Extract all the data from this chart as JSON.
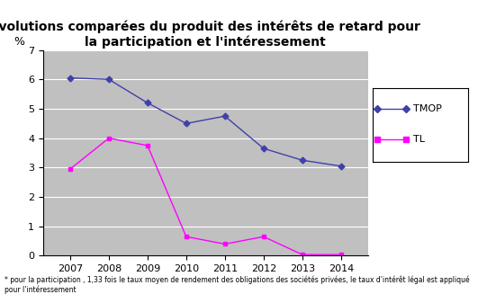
{
  "title": "Evolutions comparées du produit des intérêts de retard pour\nla participation et l'intéressement",
  "ylabel": "%",
  "footnote": "* pour la participation , 1,33 fois le taux moyen de rendement des obligations des sociétés privées, le taux d'intérêt légal est appliqué pour l'intéressement",
  "years": [
    2007,
    2008,
    2009,
    2010,
    2011,
    2012,
    2013,
    2014
  ],
  "TMOP": [
    6.05,
    6.0,
    5.2,
    4.5,
    4.75,
    3.65,
    3.25,
    3.05
  ],
  "TL": [
    2.95,
    4.0,
    3.75,
    0.65,
    0.4,
    0.65,
    0.04,
    0.04
  ],
  "TMOP_color": "#4040AA",
  "TL_color": "#FF00FF",
  "background_color": "#C0C0C0",
  "plot_bg_color": "#C0C0C0",
  "outer_bg_color": "#FFFFFF",
  "ylim": [
    0,
    7
  ],
  "yticks": [
    0,
    1,
    2,
    3,
    4,
    5,
    6,
    7
  ],
  "grid_color": "#FFFFFF",
  "legend_TMOP": "TMOP",
  "legend_TL": "TL",
  "title_fontsize": 10,
  "tick_fontsize": 8,
  "footnote_fontsize": 5.5
}
